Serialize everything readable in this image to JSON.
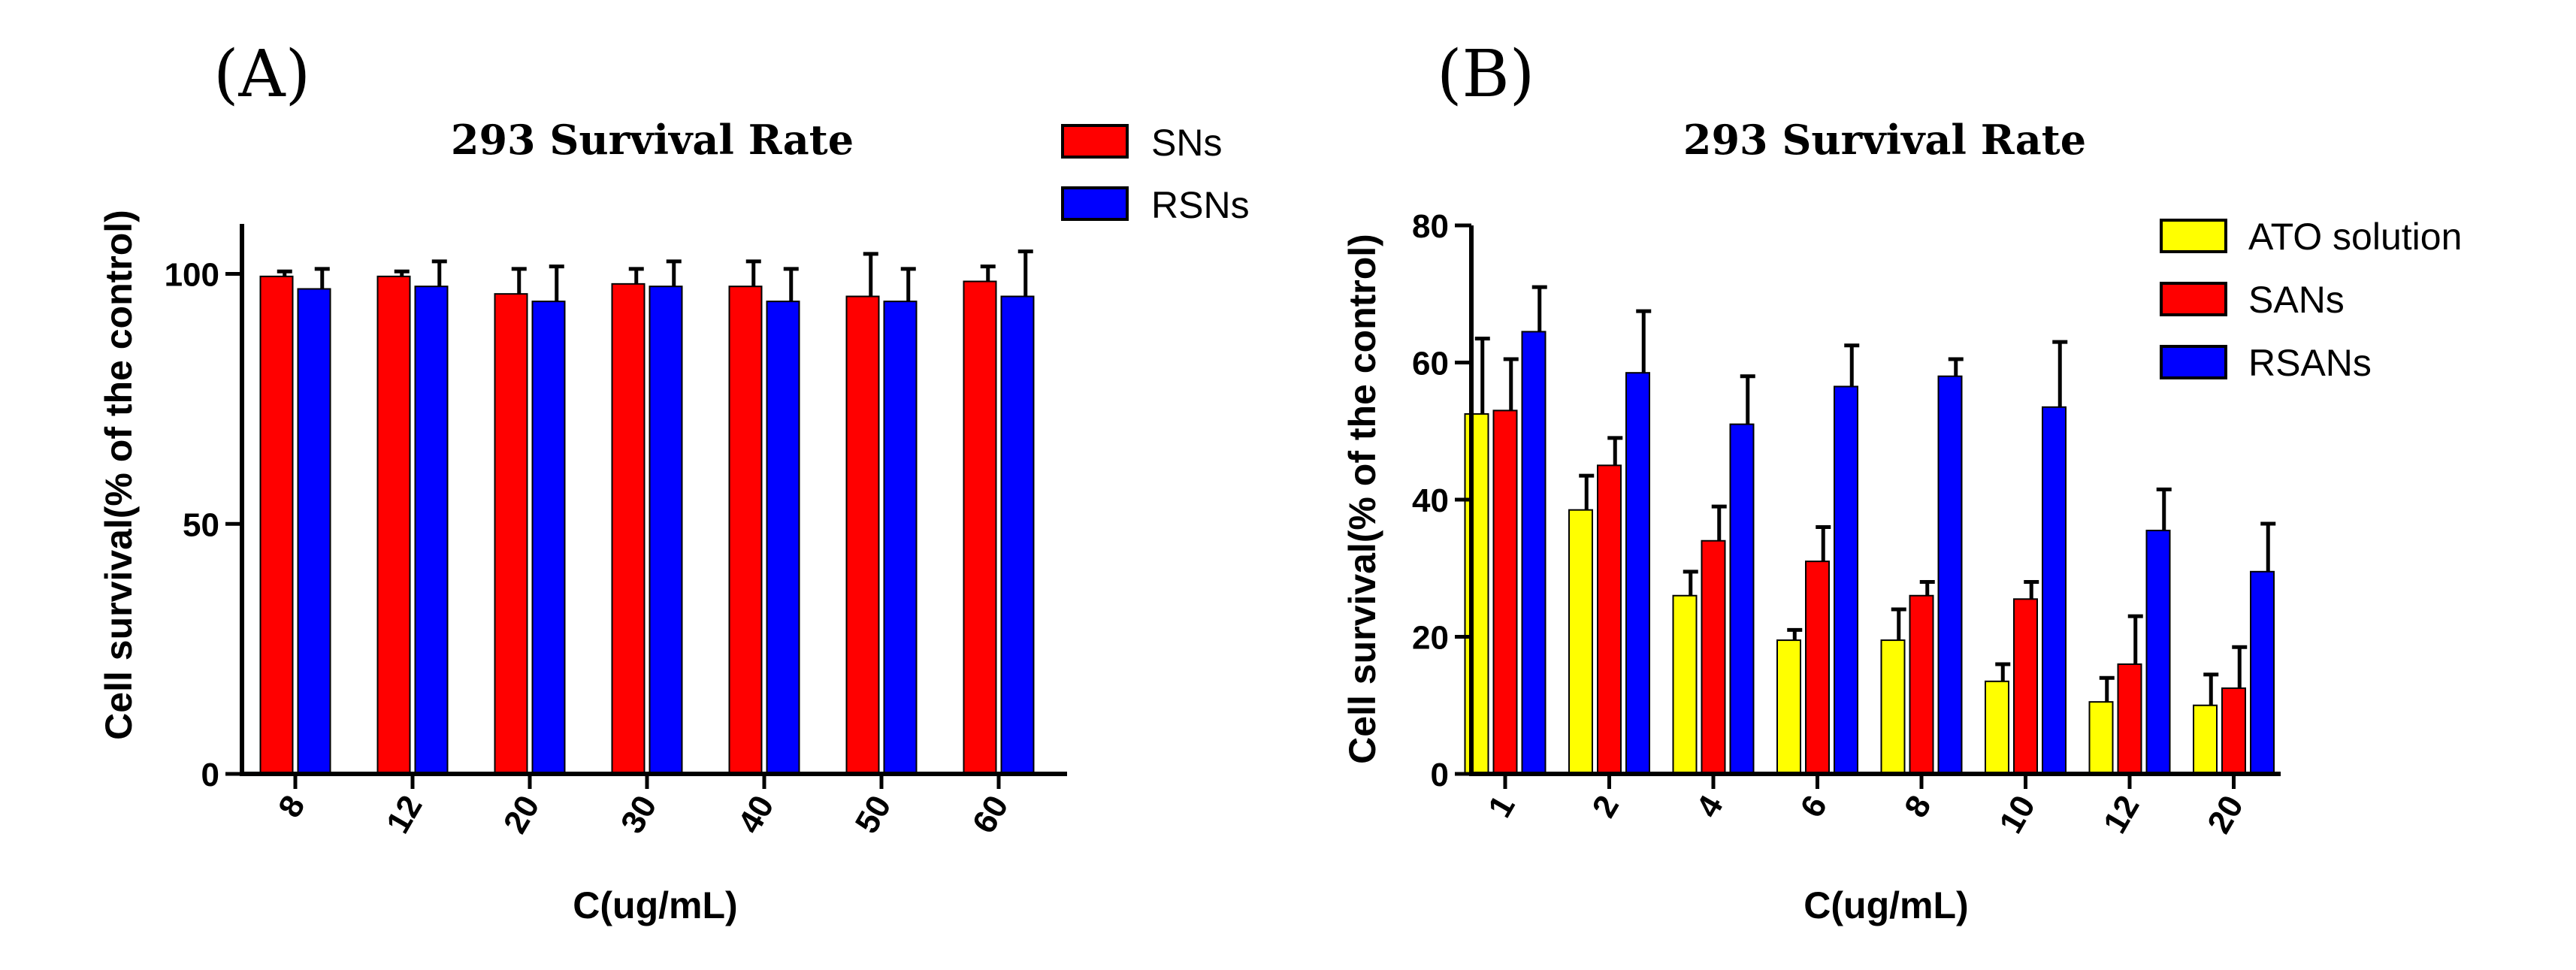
{
  "chart_data": [
    {
      "type": "bar",
      "panel_label": "(A)",
      "title": "293 Survival Rate",
      "xlabel": "C(ug/mL)",
      "ylabel": "Cell survival(% of the control)",
      "ylim": [
        0,
        110
      ],
      "yticks": [
        0,
        50,
        100
      ],
      "legend_position": "top-right",
      "categories": [
        "8",
        "12",
        "20",
        "30",
        "40",
        "50",
        "60"
      ],
      "series": [
        {
          "name": "SNs",
          "color": "#ff0000",
          "values": [
            99.5,
            99.5,
            96,
            98,
            97.5,
            95.5,
            98.5
          ],
          "errors": [
            1,
            1,
            5,
            3,
            5,
            8.5,
            3
          ]
        },
        {
          "name": "RSNs",
          "color": "#0000ff",
          "values": [
            97,
            97.5,
            94.5,
            97.5,
            94.5,
            94.5,
            95.5
          ],
          "errors": [
            4,
            5,
            7,
            5,
            6.5,
            6.5,
            9
          ]
        }
      ]
    },
    {
      "type": "bar",
      "panel_label": "(B)",
      "title": "293 Survival Rate",
      "xlabel": "C(ug/mL)",
      "ylabel": "Cell survival(% of the control)",
      "ylim": [
        0,
        80
      ],
      "yticks": [
        0,
        20,
        40,
        60,
        80
      ],
      "legend_position": "top-right",
      "categories": [
        "1",
        "2",
        "4",
        "6",
        "8",
        "10",
        "12",
        "20"
      ],
      "series": [
        {
          "name": "ATO solution",
          "color": "#ffff00",
          "values": [
            52.5,
            38.5,
            26,
            19.5,
            19.5,
            13.5,
            10.5,
            10
          ],
          "errors": [
            11,
            5,
            3.5,
            1.5,
            4.5,
            2.5,
            3.5,
            4.5
          ]
        },
        {
          "name": "SANs",
          "color": "#ff0000",
          "values": [
            53,
            45,
            34,
            31,
            26,
            25.5,
            16,
            12.5
          ],
          "errors": [
            7.5,
            4,
            5,
            5,
            2,
            2.5,
            7,
            6
          ]
        },
        {
          "name": "RSANs",
          "color": "#0000ff",
          "values": [
            64.5,
            58.5,
            51,
            56.5,
            58,
            53.5,
            35.5,
            29.5
          ],
          "errors": [
            6.5,
            9,
            7,
            6,
            2.5,
            9.5,
            6,
            7
          ]
        }
      ]
    }
  ]
}
